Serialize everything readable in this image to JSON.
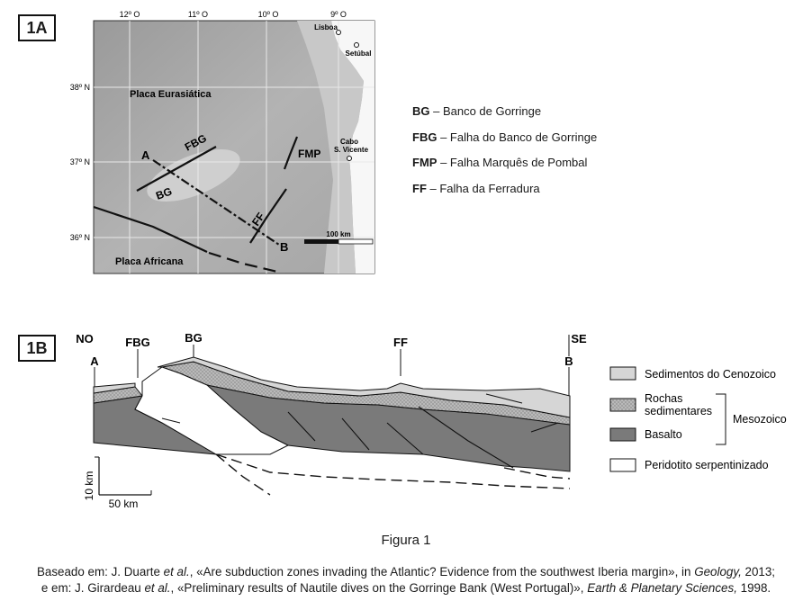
{
  "panel_a": {
    "label": "1A",
    "lon_ticks": [
      "12º O",
      "11º O",
      "10º O",
      "9º O"
    ],
    "lat_ticks": [
      "38º N",
      "37º N",
      "36º N"
    ],
    "places": {
      "lisboa": "Lisboa",
      "setubal": "Setúbal",
      "cabo": [
        "Cabo",
        "S. Vicente"
      ]
    },
    "plate_eurasia": "Placa Eurasiática",
    "plate_africa": "Placa Africana",
    "feature_labels": {
      "fbg": "FBG",
      "bg": "BG",
      "fmp": "FMP",
      "ff": "FF",
      "a": "A",
      "b": "B"
    },
    "scale": "100 km",
    "legend": [
      {
        "abbr": "BG",
        "text": " – Banco de Gorringe"
      },
      {
        "abbr": "FBG",
        "text": " – Falha do Banco de Gorringe"
      },
      {
        "abbr": "FMP",
        "text": " – Falha Marquês de Pombal"
      },
      {
        "abbr": "FF",
        "text": " – Falha da Ferradura"
      }
    ]
  },
  "panel_b": {
    "label": "1B",
    "top_labels": {
      "no": "NO",
      "a": "A",
      "fbg": "FBG",
      "bg": "BG",
      "ff": "FF",
      "se": "SE",
      "b": "B"
    },
    "scale_v": "10 km",
    "scale_h": "50 km",
    "legend": {
      "cenozoico": "Sedimentos do Cenozoico",
      "rochas": [
        "Rochas",
        "sedimentares"
      ],
      "basalto": "Basalto",
      "peridotito": "Peridotito serpentinizado",
      "mesozoico": "Mesozoico"
    },
    "colors": {
      "cenozoico": "#d6d6d6",
      "rochas": "#b9b9b9",
      "basalto": "#7a7a7a",
      "peridotito": "#ffffff"
    }
  },
  "caption": "Figura 1",
  "source": {
    "line1_a": "Baseado em: J. Duarte ",
    "line1_b": "et al.",
    "line1_c": ", «Are subduction zones invading the Atlantic? Evidence from the southwest Iberia margin», in ",
    "line1_d": "Geology,",
    "line1_e": " 2013;",
    "line2_a": "e em: J. Girardeau ",
    "line2_b": "et al.",
    "line2_c": ", «Preliminary results of Nautile dives on the Gorringe Bank (West Portugal)», ",
    "line2_d": "Earth & Planetary Sciences,",
    "line2_e": " 1998."
  }
}
